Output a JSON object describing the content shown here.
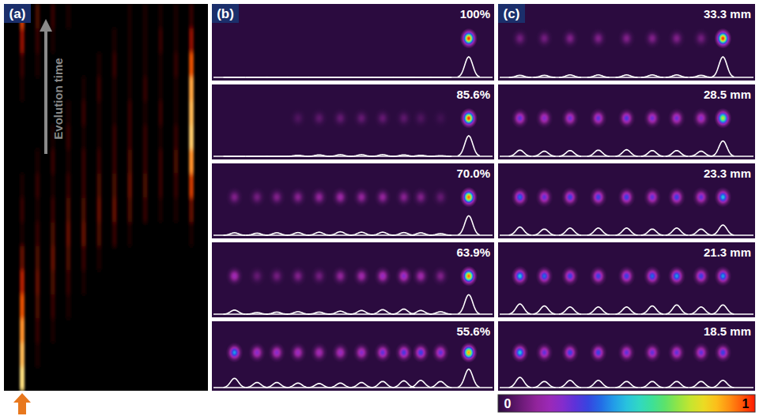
{
  "chart_data": [
    {
      "type": "heatmap",
      "panel": "(a)",
      "annotation": "Evolution time",
      "cells": [
        [
          1.0,
          0,
          0,
          0,
          0,
          0,
          0,
          0,
          0,
          0,
          0,
          0
        ],
        [
          0.9,
          0.05,
          0,
          0,
          0,
          0,
          0,
          0,
          0,
          0,
          0,
          0
        ],
        [
          0.8,
          0.1,
          0.05,
          0,
          0,
          0,
          0,
          0,
          0,
          0,
          0,
          0
        ],
        [
          0.6,
          0.15,
          0.1,
          0.05,
          0,
          0,
          0,
          0,
          0,
          0,
          0,
          0
        ],
        [
          0.4,
          0.2,
          0.15,
          0.1,
          0.05,
          0,
          0,
          0,
          0,
          0,
          0,
          0
        ],
        [
          0.2,
          0.15,
          0.2,
          0.15,
          0.1,
          0.05,
          0,
          0,
          0,
          0,
          0,
          0
        ],
        [
          0.05,
          0.1,
          0.15,
          0.2,
          0.2,
          0.15,
          0.1,
          0.05,
          0,
          0,
          0,
          0.05
        ],
        [
          0.1,
          0.05,
          0.1,
          0.15,
          0.15,
          0.2,
          0.2,
          0.15,
          0.1,
          0.05,
          0.05,
          0.2
        ],
        [
          0.05,
          0.1,
          0.05,
          0.1,
          0.1,
          0.15,
          0.15,
          0.2,
          0.15,
          0.1,
          0.1,
          0.5
        ],
        [
          0,
          0.05,
          0.1,
          0.05,
          0.1,
          0.1,
          0.1,
          0.15,
          0.1,
          0.1,
          0.15,
          0.8
        ],
        [
          0,
          0,
          0.05,
          0.1,
          0.05,
          0.05,
          0.1,
          0.1,
          0.1,
          0.05,
          0.1,
          0.95
        ],
        [
          0,
          0,
          0,
          0.05,
          0.1,
          0.05,
          0.05,
          0.1,
          0.05,
          0.1,
          0.05,
          0.9
        ],
        [
          0.05,
          0,
          0,
          0,
          0.05,
          0.1,
          0.05,
          0.05,
          0.1,
          0.05,
          0.05,
          0.85
        ],
        [
          0.1,
          0.05,
          0,
          0,
          0,
          0.05,
          0.1,
          0.05,
          0.05,
          0.05,
          0.1,
          0.6
        ],
        [
          0.3,
          0.1,
          0.05,
          0,
          0,
          0,
          0.05,
          0.05,
          0.05,
          0.1,
          0.05,
          0.3
        ],
        [
          0.5,
          0.15,
          0.1,
          0.05,
          0,
          0,
          0,
          0.05,
          0.05,
          0.05,
          0.05,
          0.1
        ]
      ]
    },
    {
      "type": "spots",
      "panel": "(b)",
      "xlim": [
        0,
        100
      ],
      "tick_labels": false,
      "x": [
        8,
        16,
        23,
        30.5,
        38,
        45.5,
        53,
        60.5,
        68,
        74,
        81,
        91
      ],
      "rows": [
        {
          "label": "100%",
          "values": [
            0,
            0,
            0,
            0,
            0,
            0,
            0,
            0,
            0,
            0,
            0,
            1.0
          ]
        },
        {
          "label": "85.6%",
          "values": [
            0,
            0,
            0,
            0.05,
            0.07,
            0.08,
            0.08,
            0.08,
            0.07,
            0.05,
            0.03,
            1.0
          ]
        },
        {
          "label": "70.0%",
          "values": [
            0.12,
            0.1,
            0.12,
            0.13,
            0.15,
            0.17,
            0.15,
            0.15,
            0.13,
            0.12,
            0.08,
            0.95
          ]
        },
        {
          "label": "63.9%",
          "values": [
            0.2,
            0.08,
            0.1,
            0.12,
            0.1,
            0.15,
            0.18,
            0.22,
            0.25,
            0.18,
            0.12,
            0.95
          ]
        },
        {
          "label": "55.6%",
          "values": [
            0.45,
            0.25,
            0.25,
            0.22,
            0.2,
            0.22,
            0.25,
            0.3,
            0.33,
            0.35,
            0.3,
            0.9
          ]
        }
      ]
    },
    {
      "type": "spots",
      "panel": "(c)",
      "xlim": [
        0,
        100
      ],
      "tick_labels": false,
      "x": [
        8.5,
        18,
        28,
        39,
        50,
        60,
        69.5,
        79,
        87.5
      ],
      "rows": [
        {
          "label": "33.3 mm",
          "values": [
            0.1,
            0.1,
            0.12,
            0.12,
            0.12,
            0.12,
            0.12,
            0.1,
            1.0
          ]
        },
        {
          "label": "28.5 mm",
          "values": [
            0.3,
            0.25,
            0.28,
            0.3,
            0.32,
            0.28,
            0.28,
            0.25,
            0.75
          ]
        },
        {
          "label": "23.3 mm",
          "values": [
            0.4,
            0.3,
            0.35,
            0.35,
            0.35,
            0.3,
            0.35,
            0.3,
            0.5
          ]
        },
        {
          "label": "21.3 mm",
          "values": [
            0.5,
            0.4,
            0.35,
            0.35,
            0.35,
            0.4,
            0.45,
            0.35,
            0.45
          ]
        },
        {
          "label": "18.5 mm",
          "values": [
            0.5,
            0.3,
            0.35,
            0.35,
            0.3,
            0.3,
            0.3,
            0.3,
            0.35
          ]
        }
      ]
    }
  ],
  "colorbar": {
    "range": [
      0,
      1
    ],
    "ticks": [
      0,
      1
    ]
  }
}
